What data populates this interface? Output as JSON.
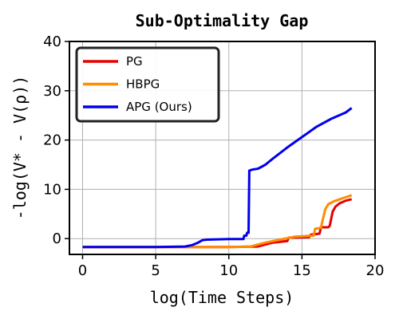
{
  "chart_data": {
    "type": "line",
    "title": "Sub-Optimality Gap",
    "xlabel": "log(Time Steps)",
    "ylabel": "-log(V* - V(ρ))",
    "xlim": [
      -0.9,
      20
    ],
    "ylim": [
      -3.2,
      40
    ],
    "xticks": [
      0,
      5,
      10,
      15,
      20
    ],
    "yticks": [
      0,
      10,
      20,
      30,
      40
    ],
    "grid": true,
    "legend_position": "top-left",
    "series": [
      {
        "name": "PG",
        "color": "#e60000",
        "x": [
          0,
          5,
          10,
          12,
          13,
          14,
          14.1,
          15.5,
          15.6,
          16.2,
          16.3,
          16.8,
          16.9,
          17.1,
          17.3,
          17.6,
          18,
          18.4
        ],
        "y": [
          -1.7,
          -1.7,
          -1.7,
          -1.6,
          -0.8,
          -0.5,
          0.2,
          0.3,
          0.8,
          1,
          2.3,
          2.3,
          2.6,
          5.5,
          6.5,
          7.2,
          7.7,
          8
        ]
      },
      {
        "name": "HBPG",
        "color": "#ff8c00",
        "x": [
          0,
          5,
          10,
          11.5,
          12.5,
          13.5,
          14.5,
          15.8,
          15.9,
          16.3,
          16.4,
          16.6,
          16.8,
          17.2,
          17.8,
          18.4
        ],
        "y": [
          -1.7,
          -1.7,
          -1.7,
          -1.6,
          -0.8,
          -0.2,
          0.4,
          0.6,
          2,
          2.2,
          3.5,
          6,
          7,
          7.6,
          8.2,
          8.8
        ]
      },
      {
        "name": "APG (Ours)",
        "color": "#0000ee",
        "x": [
          0,
          5,
          7,
          7.5,
          7.9,
          8.2,
          8.5,
          10,
          11,
          11.05,
          11.2,
          11.25,
          11.35,
          11.4,
          11.6,
          12,
          12.5,
          13,
          14,
          15,
          16,
          17,
          18,
          18.4
        ],
        "y": [
          -1.7,
          -1.7,
          -1.6,
          -1.3,
          -0.8,
          -0.3,
          -0.2,
          -0.1,
          -0.1,
          0.6,
          0.6,
          1.2,
          1.2,
          13.8,
          14,
          14.2,
          15,
          16.2,
          18.5,
          20.6,
          22.7,
          24.3,
          25.6,
          26.5
        ]
      }
    ]
  }
}
